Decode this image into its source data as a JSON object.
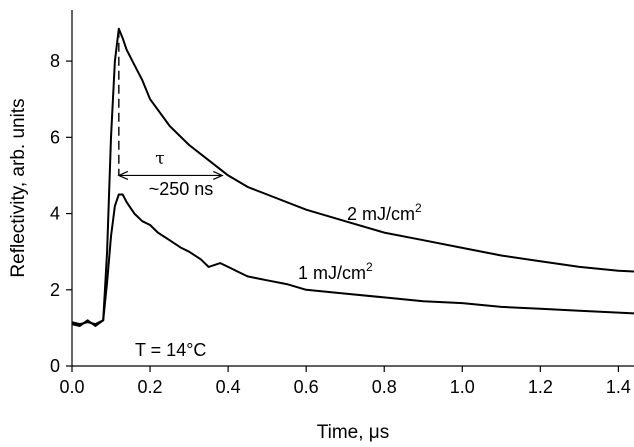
{
  "chart_data": {
    "type": "line",
    "xlabel": "Time, μs",
    "ylabel": "Reflectivity, arb. units",
    "xlim": [
      0.0,
      1.44
    ],
    "ylim": [
      0,
      9.0
    ],
    "x_ticks": [
      "0.0",
      "0.2",
      "0.4",
      "0.6",
      "0.8",
      "1.0",
      "1.2",
      "1.4"
    ],
    "x_tick_values": [
      0.0,
      0.2,
      0.4,
      0.6,
      0.8,
      1.0,
      1.2,
      1.4
    ],
    "y_ticks": [
      "0",
      "2",
      "4",
      "6",
      "8"
    ],
    "y_tick_values": [
      0,
      2,
      4,
      6,
      8
    ],
    "grid": false,
    "legend": "none",
    "series": [
      {
        "name": "2 mJ/cm²",
        "label_text": "2 mJ/cm",
        "label_sup": "2",
        "x": [
          0.0,
          0.02,
          0.04,
          0.06,
          0.08,
          0.09,
          0.1,
          0.11,
          0.12,
          0.13,
          0.14,
          0.16,
          0.18,
          0.2,
          0.25,
          0.3,
          0.35,
          0.4,
          0.45,
          0.5,
          0.6,
          0.7,
          0.8,
          0.9,
          1.0,
          1.1,
          1.2,
          1.3,
          1.4,
          1.44
        ],
        "y": [
          1.15,
          1.1,
          1.15,
          1.1,
          1.2,
          3.0,
          6.0,
          8.0,
          8.85,
          8.6,
          8.3,
          7.9,
          7.5,
          7.0,
          6.3,
          5.8,
          5.4,
          5.0,
          4.7,
          4.5,
          4.1,
          3.8,
          3.5,
          3.3,
          3.1,
          2.9,
          2.75,
          2.6,
          2.5,
          2.48
        ]
      },
      {
        "name": "1 mJ/cm²",
        "label_text": "1 mJ/cm",
        "label_sup": "2",
        "x": [
          0.0,
          0.02,
          0.04,
          0.06,
          0.08,
          0.09,
          0.1,
          0.11,
          0.12,
          0.13,
          0.14,
          0.16,
          0.18,
          0.2,
          0.22,
          0.25,
          0.28,
          0.3,
          0.33,
          0.35,
          0.38,
          0.4,
          0.43,
          0.45,
          0.5,
          0.55,
          0.6,
          0.7,
          0.8,
          0.9,
          1.0,
          1.1,
          1.2,
          1.3,
          1.4,
          1.44
        ],
        "y": [
          1.1,
          1.05,
          1.2,
          1.05,
          1.2,
          2.2,
          3.4,
          4.2,
          4.5,
          4.5,
          4.3,
          4.0,
          3.8,
          3.7,
          3.5,
          3.3,
          3.1,
          3.0,
          2.8,
          2.6,
          2.7,
          2.6,
          2.45,
          2.35,
          2.25,
          2.15,
          2.0,
          1.9,
          1.8,
          1.7,
          1.65,
          1.55,
          1.5,
          1.45,
          1.4,
          1.38
        ]
      }
    ],
    "annotations": {
      "tau_symbol": "τ",
      "tau_duration": "~250 ns",
      "temperature": "T = 14°C",
      "peak_marker_x": 0.12,
      "peak_marker_y": 8.85,
      "arrow_start_x": 0.12,
      "arrow_end_x": 0.385,
      "arrow_y": 5.0
    }
  }
}
